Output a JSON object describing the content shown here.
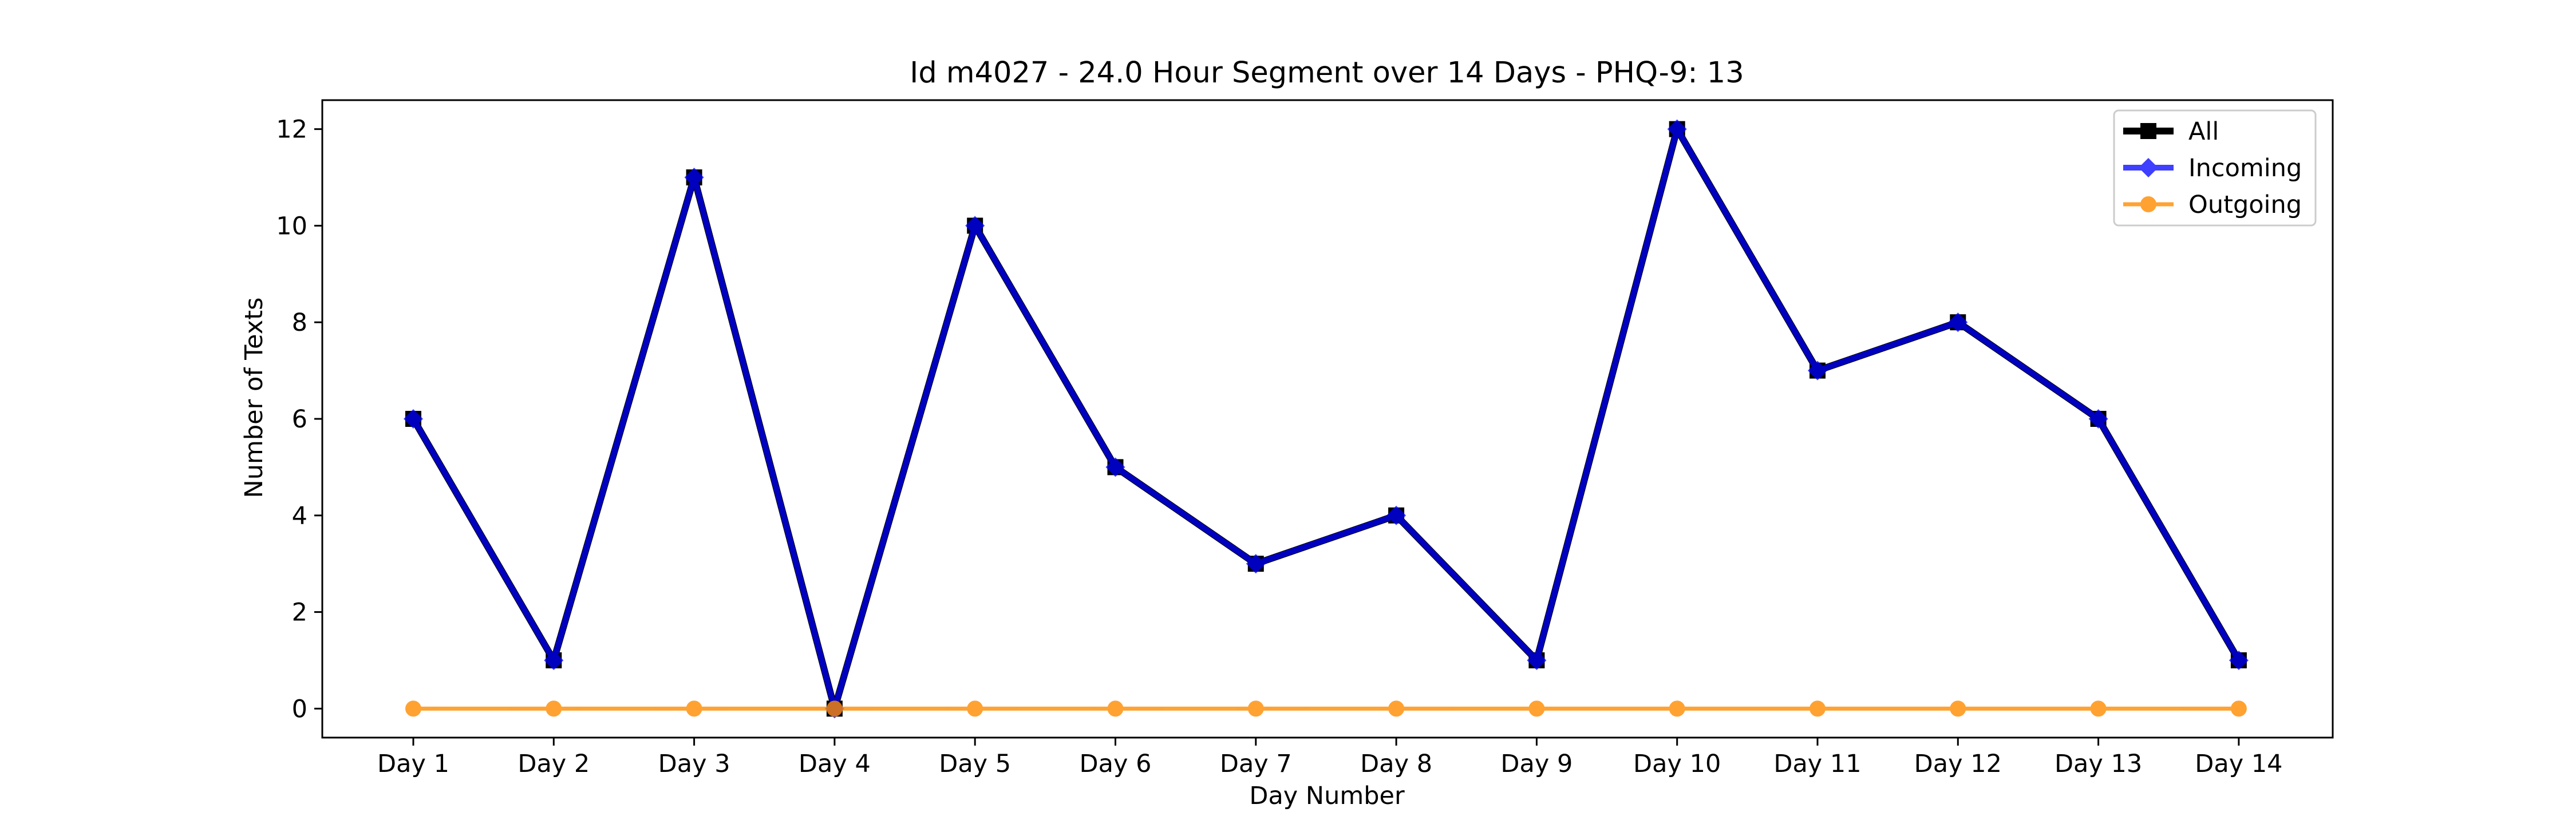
{
  "chart_data": {
    "type": "line",
    "title": "Id m4027 - 24.0 Hour Segment over 14 Days - PHQ-9: 13",
    "xlabel": "Day Number",
    "ylabel": "Number of Texts",
    "categories": [
      "Day 1",
      "Day 2",
      "Day 3",
      "Day 4",
      "Day 5",
      "Day 6",
      "Day 7",
      "Day 8",
      "Day 9",
      "Day 10",
      "Day 11",
      "Day 12",
      "Day 13",
      "Day 14"
    ],
    "y_ticks": [
      0,
      2,
      4,
      6,
      8,
      10,
      12
    ],
    "ylim": [
      -0.6,
      12.6
    ],
    "grid": false,
    "legend_position": "top-right",
    "series": [
      {
        "name": "All",
        "color": "#000000",
        "marker": "square",
        "values": [
          6,
          1,
          11,
          0,
          10,
          5,
          3,
          4,
          1,
          12,
          7,
          8,
          6,
          1
        ]
      },
      {
        "name": "Incoming",
        "color": "#0000ff",
        "marker": "diamond",
        "values": [
          6,
          1,
          11,
          0,
          10,
          5,
          3,
          4,
          1,
          12,
          7,
          8,
          6,
          1
        ]
      },
      {
        "name": "Outgoing",
        "color": "#ff8c00",
        "marker": "circle",
        "values": [
          0,
          0,
          0,
          0,
          0,
          0,
          0,
          0,
          0,
          0,
          0,
          0,
          0,
          0
        ]
      }
    ]
  }
}
